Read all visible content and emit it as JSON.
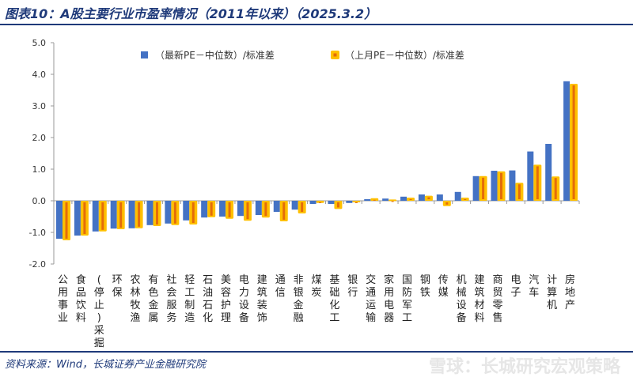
{
  "title": "图表10：A股主要行业市盈率情况（2011年以来）（2025.3.2）",
  "source": "资料来源：Wind，长城证券产业金融研究院",
  "watermark": "雪球：长城研究宏观策略",
  "chart_data": {
    "type": "bar",
    "ylim": [
      -2.0,
      5.0
    ],
    "yticks": [
      "5.0",
      "4.0",
      "3.0",
      "2.0",
      "1.0",
      "0.0",
      "-1.0",
      "-2.0"
    ],
    "legend_position": "top",
    "grid": false,
    "categories": [
      "公用事业",
      "食品饮料",
      "(停止)采掘",
      "环保",
      "农林牧渔",
      "有色金属",
      "社会服务",
      "轻工制造",
      "石油石化",
      "美容护理",
      "电力设备",
      "建筑装饰",
      "通信",
      "非银金融",
      "煤炭",
      "基础化工",
      "银行",
      "交通运输",
      "家用电器",
      "国防军工",
      "钢铁",
      "传媒",
      "机械设备",
      "建筑材料",
      "商贸零售",
      "电子",
      "汽车",
      "计算机",
      "房地产"
    ],
    "series": [
      {
        "name": "（最新PE－中位数）/标准差",
        "color": "#4472c4",
        "values": [
          -1.2,
          -1.1,
          -0.97,
          -0.88,
          -0.87,
          -0.77,
          -0.72,
          -0.62,
          -0.53,
          -0.5,
          -0.48,
          -0.45,
          -0.35,
          -0.28,
          -0.1,
          -0.1,
          -0.07,
          0.05,
          0.07,
          0.13,
          0.2,
          0.2,
          0.28,
          0.78,
          0.95,
          0.96,
          1.56,
          1.8,
          3.78
        ]
      },
      {
        "name": "（上月PE－中位数）/标准差",
        "color": "#ffc000",
        "inner_color": "#e46c0a",
        "values": [
          -1.25,
          -1.1,
          -0.97,
          -0.9,
          -0.87,
          -0.8,
          -0.77,
          -0.75,
          -0.52,
          -0.57,
          -0.63,
          -0.53,
          -0.65,
          -0.4,
          -0.07,
          -0.26,
          -0.05,
          0.08,
          0.04,
          0.1,
          0.16,
          -0.17,
          0.1,
          0.78,
          0.93,
          0.57,
          1.14,
          0.77,
          3.7
        ]
      }
    ]
  }
}
